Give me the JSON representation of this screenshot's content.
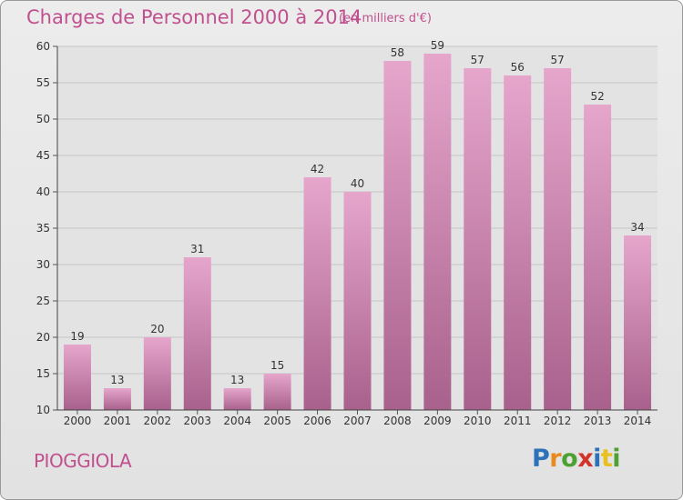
{
  "header": {
    "title": "Charges de Personnel 2000 à 2014",
    "subtitle": "(en milliers d'€)"
  },
  "footer": {
    "commune": "PIOGGIOLA",
    "logo_letters": [
      "P",
      "r",
      "o",
      "x",
      "i",
      "t",
      "i"
    ],
    "logo_colors": [
      "#2c72b8",
      "#e88a1e",
      "#4da032",
      "#d2342a",
      "#2c72b8",
      "#e8c020",
      "#4da032"
    ]
  },
  "colors": {
    "bar_top": "#e6a6cc",
    "bar_bottom": "#a8618c",
    "accent": "#c0508e"
  },
  "chart_data": {
    "type": "bar",
    "title": "Charges de Personnel 2000 à 2014",
    "subtitle": "(en milliers d'€)",
    "categories": [
      "2000",
      "2001",
      "2002",
      "2003",
      "2004",
      "2005",
      "2006",
      "2007",
      "2008",
      "2009",
      "2010",
      "2011",
      "2012",
      "2013",
      "2014"
    ],
    "values": [
      19,
      13,
      20,
      31,
      13,
      15,
      42,
      40,
      58,
      59,
      57,
      56,
      57,
      52,
      34
    ],
    "ylim": [
      10,
      60
    ],
    "yticks": [
      10,
      15,
      20,
      25,
      30,
      35,
      40,
      45,
      50,
      55,
      60
    ],
    "grid": true,
    "data_labels": true
  }
}
